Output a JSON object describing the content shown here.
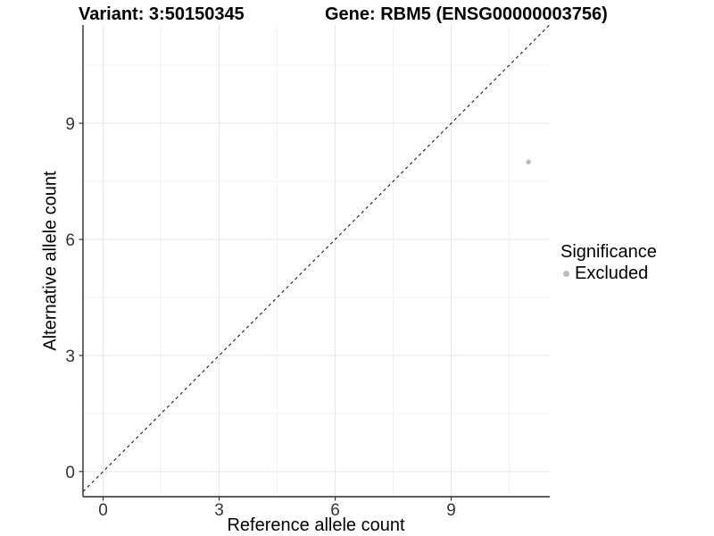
{
  "chart_data": {
    "type": "scatter",
    "title_left": "Variant: 3:50150345",
    "title_right": "Gene: RBM5 (ENSG00000003756)",
    "xlabel": "Reference allele count",
    "ylabel": "Alternative allele count",
    "x_ticks": [
      0,
      3,
      6,
      9
    ],
    "y_ticks": [
      0,
      3,
      6,
      9
    ],
    "x_minor_ticks": [
      1.5,
      4.5,
      7.5,
      10.5
    ],
    "y_minor_ticks": [
      1.5,
      4.5,
      7.5,
      10.5
    ],
    "xlim": [
      -0.52,
      11.55
    ],
    "ylim": [
      -0.65,
      11.54
    ],
    "grid": true,
    "points": [
      {
        "x": 11,
        "y": 8,
        "series": "Excluded"
      }
    ],
    "reference_line": {
      "type": "identity-diagonal",
      "style": "dashed"
    },
    "legend": {
      "title": "Significance",
      "position": "right",
      "items": [
        {
          "label": "Excluded",
          "color": "#bdbdbd"
        }
      ]
    },
    "colors": {
      "point": "#bdbdbd",
      "axis_line": "#2b2b2b",
      "tick_mark": "#333333",
      "tick_label": "#333333",
      "grid_major": "#e5e5e5",
      "grid_minor": "#f1f1f1",
      "diagonal_line": "#1a1a1a",
      "background": "#ffffff"
    }
  }
}
